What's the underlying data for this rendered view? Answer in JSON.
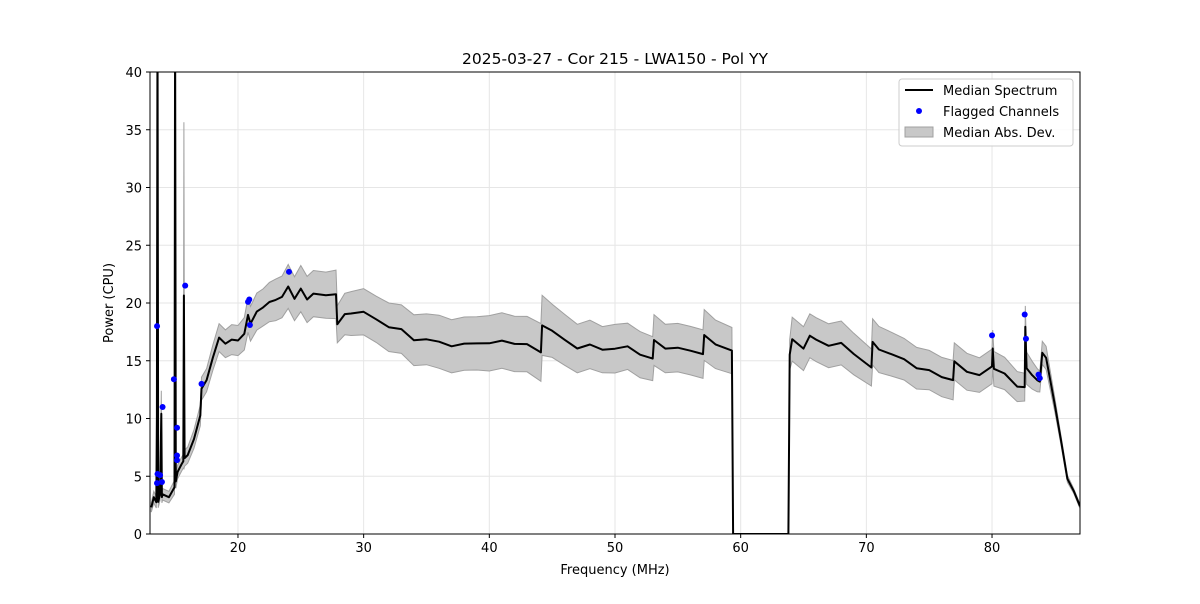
{
  "chart_data": {
    "type": "line",
    "title": "2025-03-27 - Cor 215 - LWA150 - Pol YY",
    "xlabel": "Frequency (MHz)",
    "ylabel": "Power (CPU)",
    "xlim": [
      13,
      87
    ],
    "ylim": [
      0,
      40
    ],
    "xticks": [
      20,
      30,
      40,
      50,
      60,
      70,
      80
    ],
    "yticks": [
      0,
      5,
      10,
      15,
      20,
      25,
      30,
      35,
      40
    ],
    "grid": true,
    "legend_position": "top-right",
    "legend": [
      "Median Spectrum",
      "Flagged Channels",
      "Median Abs. Dev."
    ],
    "colors": {
      "median": "#000000",
      "flagged": "#0000ff",
      "mad": "#c8c8c8",
      "mad_edge": "#a0a0a0"
    },
    "series": [
      {
        "name": "Median Spectrum",
        "x": [
          13.1,
          13.3,
          13.5,
          13.55,
          13.6,
          13.65,
          13.8,
          13.9,
          13.95,
          14.0,
          14.5,
          14.95,
          15.0,
          15.05,
          15.2,
          15.5,
          15.65,
          15.7,
          15.75,
          16.0,
          16.5,
          17.0,
          17.1,
          17.5,
          18.0,
          18.5,
          19.0,
          19.5,
          20.0,
          20.5,
          20.8,
          21.0,
          21.5,
          22.0,
          22.5,
          23.0,
          23.5,
          24.0,
          24.5,
          25.0,
          25.5,
          26.0,
          27.0,
          27.8,
          27.9,
          28.5,
          29.0,
          30.0,
          31.0,
          32.0,
          33.0,
          34.0,
          35.0,
          36.0,
          37.0,
          38.0,
          39.0,
          40.0,
          41.0,
          42.0,
          43.0,
          44.1,
          44.2,
          45.0,
          46.0,
          47.0,
          48.0,
          49.0,
          50.0,
          51.0,
          52.0,
          53.0,
          53.1,
          54.0,
          55.0,
          56.0,
          57.0,
          57.1,
          58.0,
          59.3,
          59.4,
          63.8,
          63.9,
          64.1,
          65.0,
          65.5,
          66.0,
          67.0,
          68.0,
          69.0,
          70.4,
          70.5,
          71.0,
          72.0,
          73.0,
          74.0,
          75.0,
          76.0,
          76.9,
          77.0,
          78.0,
          79.0,
          80.0,
          80.05,
          80.15,
          81.0,
          82.0,
          82.6,
          82.65,
          82.75,
          83.2,
          83.6,
          83.8,
          84.0,
          84.3,
          85.0,
          85.5,
          86.0,
          86.5,
          87.0
        ],
        "y": [
          2.3,
          3.0,
          3.0,
          10.0,
          45.0,
          3.0,
          3.2,
          10.5,
          3.3,
          3.2,
          3.4,
          4.0,
          45.0,
          4.8,
          5.2,
          6.0,
          6.5,
          20.4,
          6.7,
          6.9,
          8.0,
          10.5,
          12.5,
          13.2,
          15.5,
          16.8,
          16.5,
          17.0,
          16.5,
          17.5,
          19.0,
          18.0,
          19.5,
          19.5,
          20.0,
          20.5,
          20.3,
          21.5,
          20.5,
          21.0,
          20.5,
          20.8,
          20.5,
          21.0,
          18.0,
          19.0,
          19.3,
          19.0,
          18.7,
          18.0,
          17.5,
          17.0,
          16.8,
          16.5,
          16.5,
          16.3,
          16.5,
          16.7,
          16.5,
          16.6,
          16.5,
          15.5,
          18.3,
          17.5,
          16.7,
          16.3,
          16.2,
          16.0,
          16.2,
          16.0,
          15.7,
          15.2,
          16.6,
          16.3,
          16.0,
          15.8,
          15.8,
          17.0,
          16.5,
          16.0,
          0,
          0,
          15.5,
          16.7,
          16.3,
          17.0,
          16.8,
          16.5,
          16.3,
          15.7,
          14.5,
          16.4,
          16.2,
          15.5,
          15.0,
          14.6,
          14.0,
          13.6,
          13.5,
          14.7,
          14.2,
          13.8,
          14.3,
          16.3,
          14.2,
          13.8,
          13.0,
          12.5,
          18.0,
          14.5,
          13.5,
          13.5,
          13.2,
          15.5,
          15.5,
          11.0,
          8.0,
          5.0,
          3.5,
          2.5
        ],
        "mad": [
          0.4,
          0.5,
          0.5,
          1,
          14,
          0.5,
          0.5,
          2,
          0.5,
          0.5,
          0.5,
          0.6,
          10,
          0.6,
          0.6,
          0.6,
          0.6,
          15,
          0.7,
          0.7,
          0.8,
          0.9,
          1.0,
          1.0,
          1.1,
          1.2,
          1.2,
          1.3,
          1.3,
          1.4,
          1.5,
          1.5,
          1.6,
          1.6,
          1.7,
          1.8,
          1.8,
          1.9,
          1.9,
          2.0,
          2.0,
          2.0,
          2.0,
          2.1,
          1.6,
          1.8,
          1.9,
          2.0,
          2.0,
          2.1,
          2.1,
          2.2,
          2.2,
          2.3,
          2.3,
          2.3,
          2.3,
          2.4,
          2.4,
          2.4,
          2.4,
          2.5,
          2.6,
          2.3,
          2.2,
          2.1,
          2.1,
          2.0,
          2.1,
          2.0,
          2.0,
          1.9,
          2.2,
          2.1,
          2.1,
          2.1,
          2.1,
          2.2,
          2.1,
          2.0,
          0,
          0,
          1.3,
          1.9,
          1.9,
          1.9,
          1.9,
          1.9,
          1.9,
          1.8,
          1.6,
          2.0,
          2.0,
          1.9,
          1.8,
          1.8,
          1.7,
          1.7,
          1.7,
          1.6,
          1.6,
          1.5,
          1.5,
          1.6,
          1.5,
          1.4,
          1.3,
          1.2,
          1.8,
          1.4,
          1.2,
          1.0,
          0.9,
          1.0,
          1.0,
          0.6,
          0.4,
          0.3,
          0.2,
          0.2
        ]
      },
      {
        "name": "Flagged Channels",
        "x": [
          13.56,
          13.6,
          13.56,
          13.8,
          13.95,
          14.0,
          14.9,
          15.15,
          15.15,
          15.15,
          15.8,
          17.1,
          20.8,
          20.9,
          20.95,
          24.06,
          80.0,
          82.6,
          82.7,
          83.7,
          83.8
        ],
        "y": [
          18.0,
          5.2,
          4.4,
          5.1,
          4.5,
          11.0,
          13.4,
          9.2,
          6.8,
          6.4,
          21.5,
          13.0,
          20.1,
          20.3,
          18.1,
          22.7,
          17.2,
          19.0,
          16.9,
          13.8,
          13.5
        ]
      }
    ]
  }
}
